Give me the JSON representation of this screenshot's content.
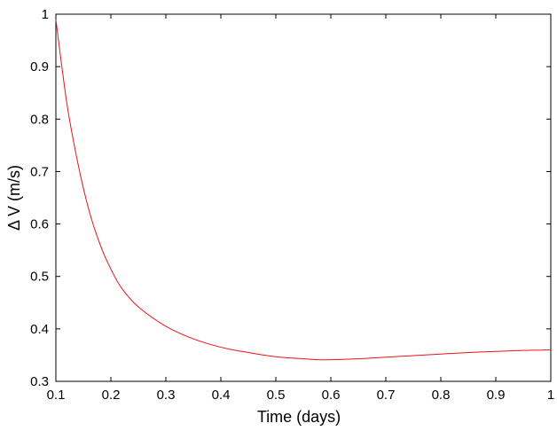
{
  "chart_data": {
    "type": "line",
    "title": "",
    "xlabel": "Time (days)",
    "ylabel": "Δ V (m/s)",
    "xlim": [
      0.1,
      1
    ],
    "ylim": [
      0.3,
      1
    ],
    "grid": false,
    "x_ticks": [
      "0.1",
      "0.2",
      "0.3",
      "0.4",
      "0.5",
      "0.6",
      "0.7",
      "0.8",
      "0.9",
      "1"
    ],
    "y_ticks": [
      "0.3",
      "0.4",
      "0.5",
      "0.6",
      "0.7",
      "0.8",
      "0.9",
      "1"
    ],
    "series": [
      {
        "color": "#e8141b",
        "x": [
          0.1,
          0.12,
          0.14,
          0.16,
          0.18,
          0.2,
          0.22,
          0.25,
          0.3,
          0.35,
          0.4,
          0.45,
          0.5,
          0.55,
          0.59,
          0.65,
          0.7,
          0.75,
          0.8,
          0.85,
          0.9,
          0.95,
          1.0
        ],
        "y": [
          0.99,
          0.83,
          0.716,
          0.627,
          0.562,
          0.514,
          0.477,
          0.442,
          0.405,
          0.381,
          0.365,
          0.355,
          0.347,
          0.343,
          0.341,
          0.343,
          0.346,
          0.349,
          0.352,
          0.355,
          0.357,
          0.359,
          0.36
        ]
      }
    ]
  }
}
